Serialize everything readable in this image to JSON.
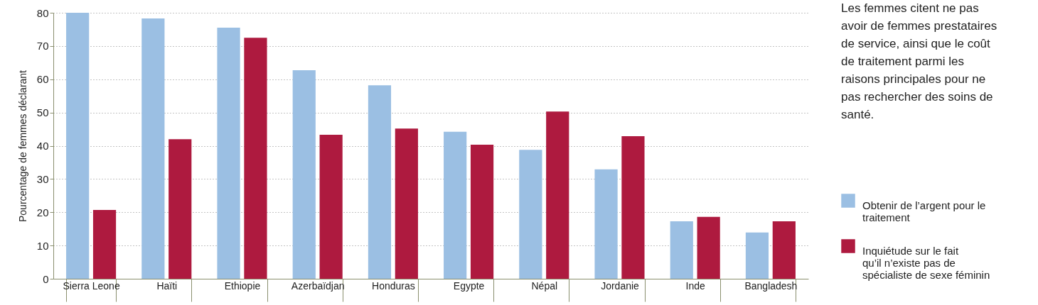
{
  "chart_data": {
    "type": "bar",
    "title": "Les femmes citent ne pas avoir de femmes prestataires de service, ainsi que le coût de traitement parmi les raisons principales pour ne pas rechercher des soins de santé.",
    "ylabel": "Pourcentage de femmes déclarant",
    "categories": [
      "Sierra Leone",
      "Haïti",
      "Ethiopie",
      "Azerbaïdjan",
      "Honduras",
      "Egypte",
      "Népal",
      "Jordanie",
      "Inde",
      "Bangladesh"
    ],
    "series": [
      {
        "name": "Obtenir de l’argent pour le traitement",
        "color": "#9bbfe3",
        "values": [
          80,
          78.3,
          75.5,
          62.7,
          58.2,
          44.2,
          38.8,
          32.9,
          17.3,
          13.9
        ]
      },
      {
        "name": "Inquiétude sur le fait qu’il n’existe pas de spécialiste de sexe féminin",
        "color": "#ae1a3f",
        "values": [
          20.7,
          42.0,
          72.5,
          43.3,
          45.2,
          40.3,
          50.3,
          42.9,
          18.6,
          17.3
        ]
      }
    ],
    "ylim": [
      0,
      80
    ],
    "yticks": [
      0,
      10,
      20,
      30,
      40,
      50,
      60,
      70,
      80
    ],
    "grid": "y",
    "legend": "right"
  }
}
